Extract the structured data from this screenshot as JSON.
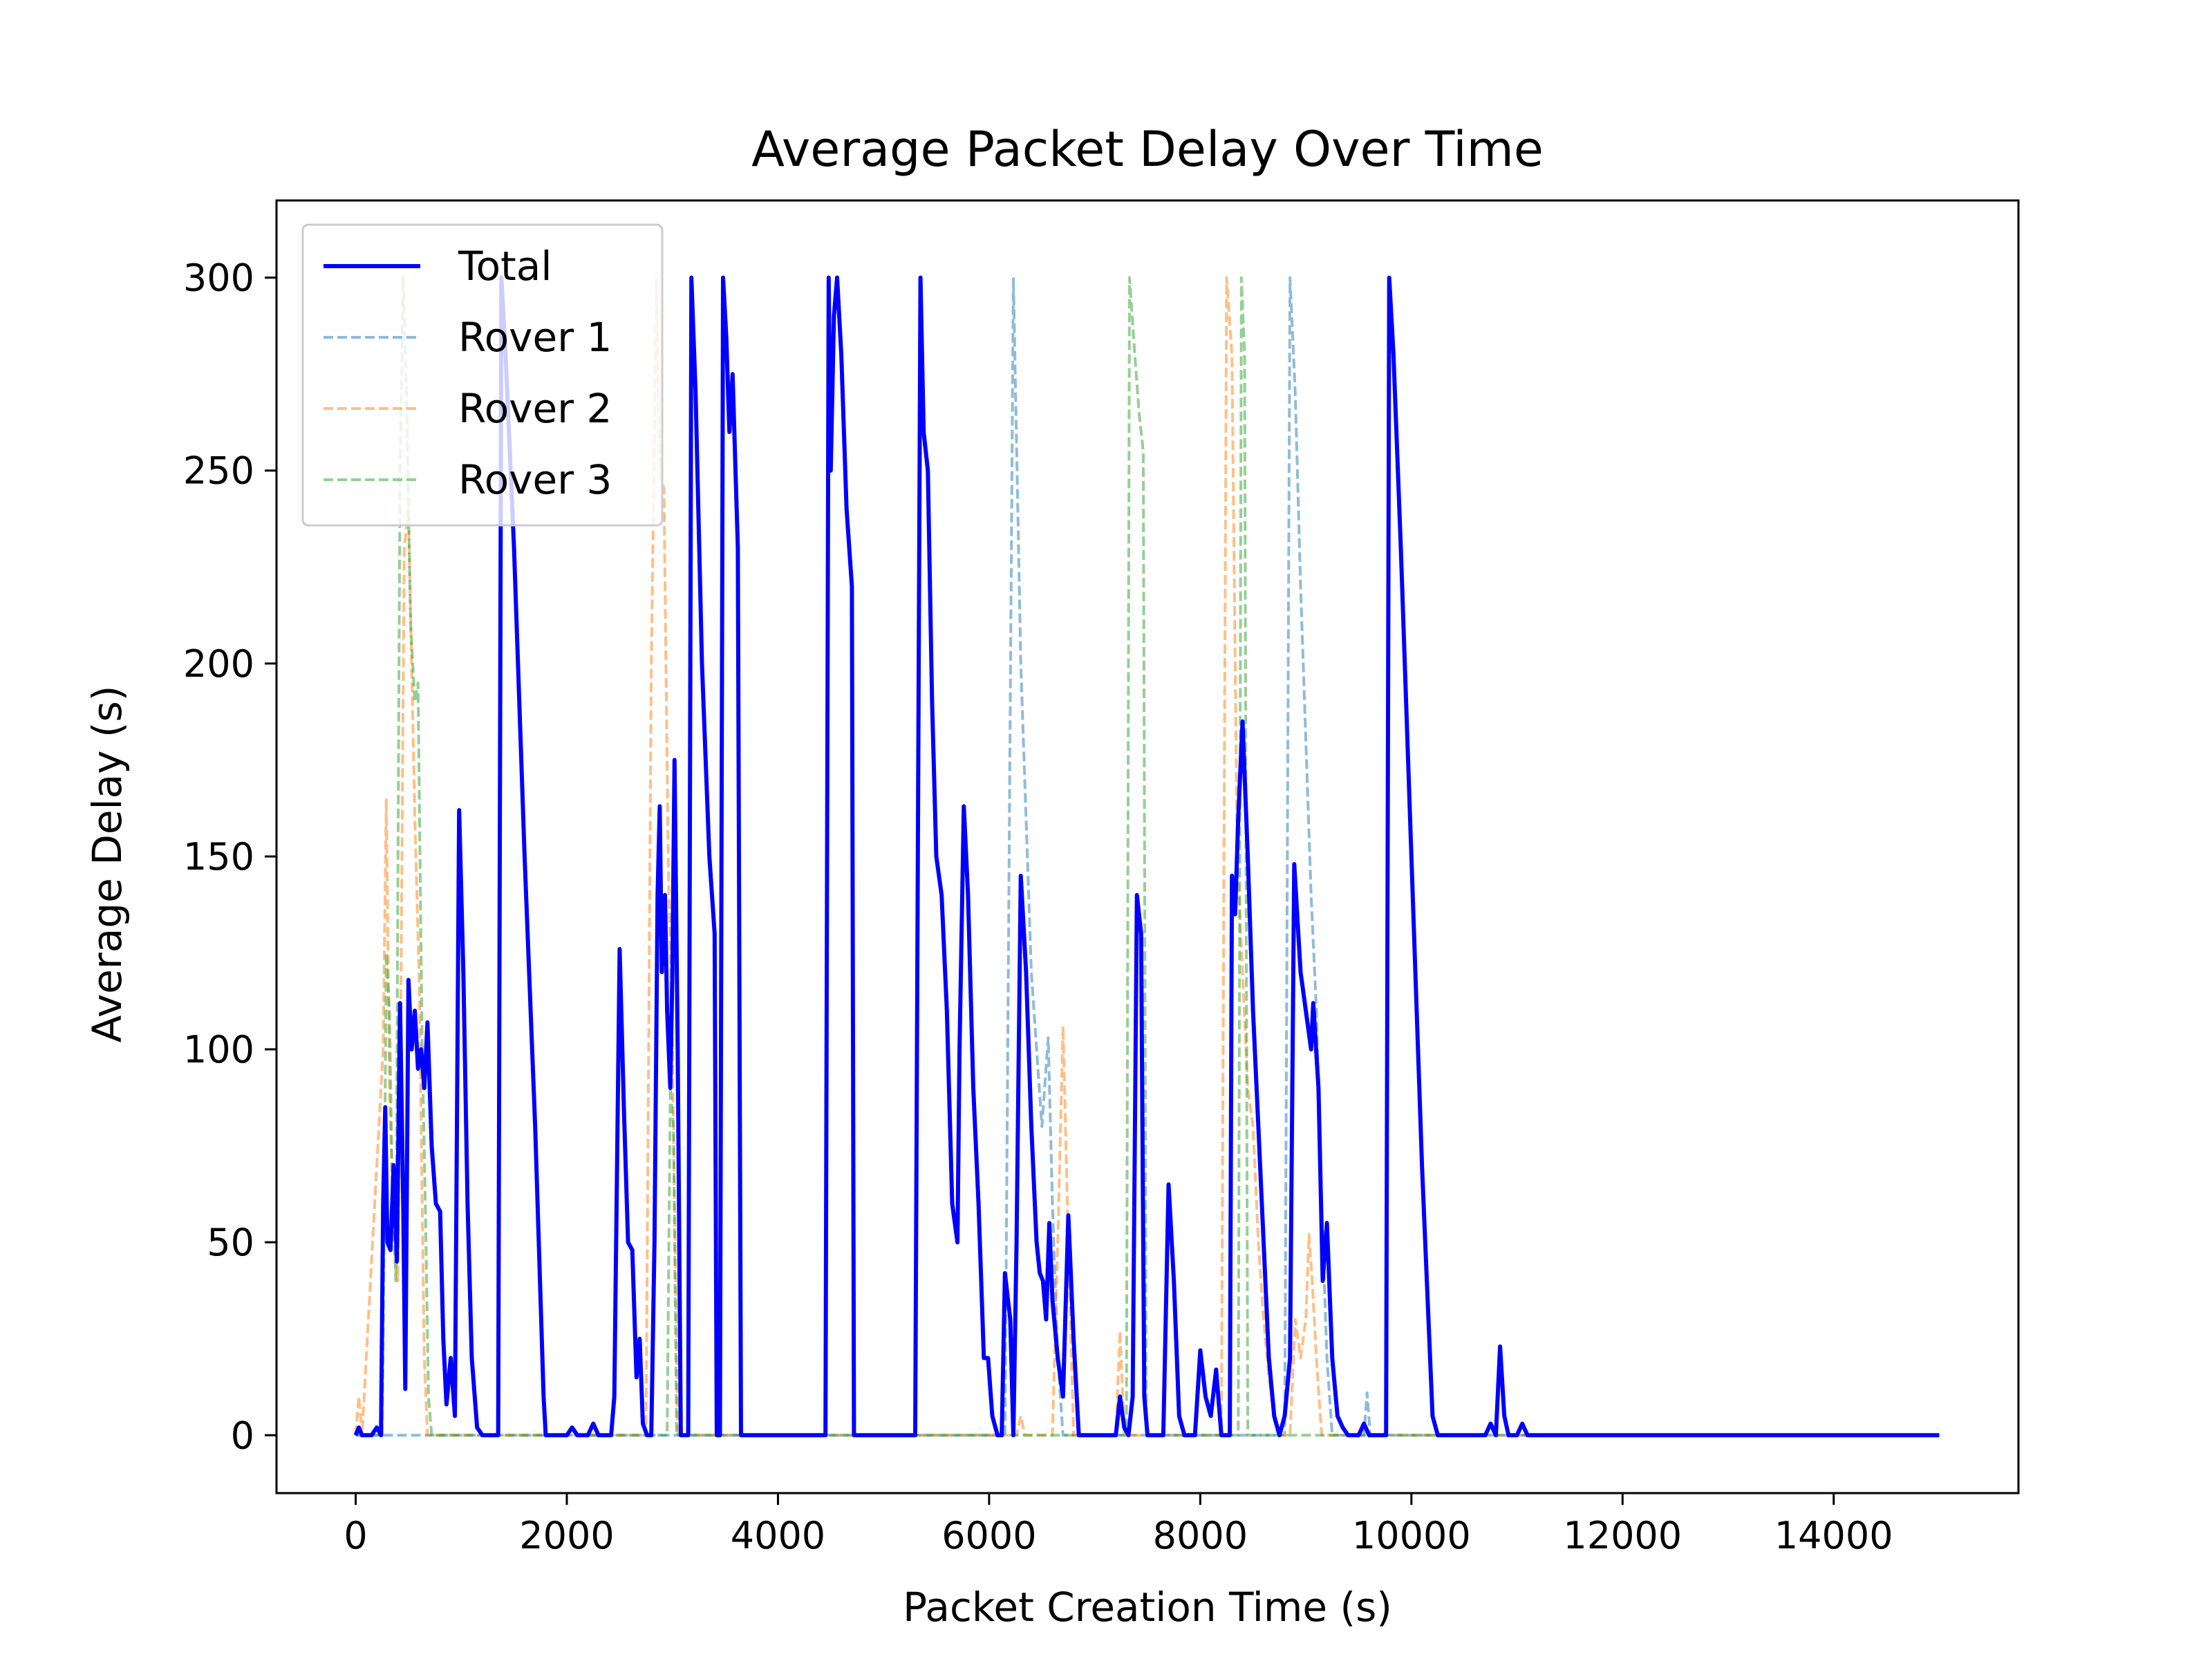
{
  "chart_data": {
    "type": "line",
    "title": "Average Packet Delay Over Time",
    "xlabel": "Packet Creation Time (s)",
    "ylabel": "Average Delay (s)",
    "xlim": [
      -750,
      15750
    ],
    "ylim": [
      -15,
      320
    ],
    "xticks": [
      0,
      2000,
      4000,
      6000,
      8000,
      10000,
      12000,
      14000
    ],
    "yticks": [
      0,
      50,
      100,
      150,
      200,
      250,
      300
    ],
    "grid": false,
    "legend_position": "top-left",
    "series": [
      {
        "name": "Total",
        "color": "#0000ff",
        "style": "solid",
        "points": [
          [
            0,
            0
          ],
          [
            30,
            2
          ],
          [
            60,
            0
          ],
          [
            150,
            0
          ],
          [
            200,
            2
          ],
          [
            240,
            0
          ],
          [
            260,
            60
          ],
          [
            280,
            85
          ],
          [
            300,
            50
          ],
          [
            330,
            48
          ],
          [
            360,
            70
          ],
          [
            390,
            45
          ],
          [
            420,
            112
          ],
          [
            450,
            60
          ],
          [
            470,
            12
          ],
          [
            500,
            118
          ],
          [
            530,
            100
          ],
          [
            560,
            110
          ],
          [
            590,
            95
          ],
          [
            620,
            100
          ],
          [
            650,
            90
          ],
          [
            680,
            107
          ],
          [
            720,
            75
          ],
          [
            760,
            60
          ],
          [
            800,
            58
          ],
          [
            830,
            25
          ],
          [
            860,
            8
          ],
          [
            900,
            20
          ],
          [
            940,
            5
          ],
          [
            980,
            162
          ],
          [
            1020,
            120
          ],
          [
            1060,
            60
          ],
          [
            1100,
            20
          ],
          [
            1150,
            2
          ],
          [
            1200,
            0
          ],
          [
            1350,
            0
          ],
          [
            1380,
            300
          ],
          [
            1420,
            280
          ],
          [
            1500,
            230
          ],
          [
            1600,
            150
          ],
          [
            1700,
            80
          ],
          [
            1780,
            10
          ],
          [
            1800,
            0
          ],
          [
            2000,
            0
          ],
          [
            2050,
            2
          ],
          [
            2100,
            0
          ],
          [
            2200,
            0
          ],
          [
            2250,
            3
          ],
          [
            2300,
            0
          ],
          [
            2420,
            0
          ],
          [
            2450,
            10
          ],
          [
            2500,
            126
          ],
          [
            2540,
            85
          ],
          [
            2580,
            50
          ],
          [
            2620,
            48
          ],
          [
            2660,
            15
          ],
          [
            2690,
            25
          ],
          [
            2720,
            3
          ],
          [
            2760,
            0
          ],
          [
            2800,
            0
          ],
          [
            2830,
            50
          ],
          [
            2860,
            140
          ],
          [
            2880,
            163
          ],
          [
            2900,
            120
          ],
          [
            2930,
            140
          ],
          [
            2950,
            110
          ],
          [
            2980,
            90
          ],
          [
            3000,
            120
          ],
          [
            3020,
            175
          ],
          [
            3050,
            100
          ],
          [
            3080,
            0
          ],
          [
            3150,
            0
          ],
          [
            3180,
            300
          ],
          [
            3220,
            270
          ],
          [
            3280,
            200
          ],
          [
            3350,
            150
          ],
          [
            3400,
            130
          ],
          [
            3420,
            0
          ],
          [
            3450,
            0
          ],
          [
            3480,
            300
          ],
          [
            3510,
            285
          ],
          [
            3540,
            260
          ],
          [
            3570,
            275
          ],
          [
            3620,
            230
          ],
          [
            3650,
            0
          ],
          [
            4450,
            0
          ],
          [
            4480,
            300
          ],
          [
            4500,
            250
          ],
          [
            4530,
            290
          ],
          [
            4560,
            300
          ],
          [
            4600,
            280
          ],
          [
            4650,
            240
          ],
          [
            4700,
            220
          ],
          [
            4720,
            0
          ],
          [
            5300,
            0
          ],
          [
            5350,
            300
          ],
          [
            5380,
            260
          ],
          [
            5420,
            250
          ],
          [
            5460,
            190
          ],
          [
            5500,
            150
          ],
          [
            5550,
            140
          ],
          [
            5600,
            110
          ],
          [
            5650,
            60
          ],
          [
            5700,
            50
          ],
          [
            5720,
            100
          ],
          [
            5760,
            163
          ],
          [
            5800,
            140
          ],
          [
            5850,
            90
          ],
          [
            5900,
            60
          ],
          [
            5950,
            20
          ],
          [
            5990,
            20
          ],
          [
            6030,
            5
          ],
          [
            6080,
            0
          ],
          [
            6120,
            0
          ],
          [
            6150,
            42
          ],
          [
            6200,
            30
          ],
          [
            6230,
            0
          ],
          [
            6260,
            50
          ],
          [
            6300,
            145
          ],
          [
            6350,
            120
          ],
          [
            6400,
            80
          ],
          [
            6450,
            50
          ],
          [
            6480,
            42
          ],
          [
            6510,
            40
          ],
          [
            6540,
            30
          ],
          [
            6570,
            55
          ],
          [
            6600,
            35
          ],
          [
            6650,
            20
          ],
          [
            6700,
            10
          ],
          [
            6750,
            57
          ],
          [
            6800,
            25
          ],
          [
            6850,
            0
          ],
          [
            7200,
            0
          ],
          [
            7240,
            10
          ],
          [
            7280,
            2
          ],
          [
            7320,
            0
          ],
          [
            7360,
            10
          ],
          [
            7400,
            140
          ],
          [
            7440,
            130
          ],
          [
            7470,
            10
          ],
          [
            7500,
            0
          ],
          [
            7650,
            0
          ],
          [
            7700,
            65
          ],
          [
            7750,
            40
          ],
          [
            7800,
            5
          ],
          [
            7850,
            0
          ],
          [
            7950,
            0
          ],
          [
            8000,
            22
          ],
          [
            8050,
            10
          ],
          [
            8100,
            5
          ],
          [
            8150,
            17
          ],
          [
            8200,
            0
          ],
          [
            8280,
            0
          ],
          [
            8300,
            145
          ],
          [
            8330,
            135
          ],
          [
            8360,
            160
          ],
          [
            8400,
            185
          ],
          [
            8450,
            150
          ],
          [
            8500,
            110
          ],
          [
            8550,
            80
          ],
          [
            8600,
            50
          ],
          [
            8650,
            20
          ],
          [
            8700,
            5
          ],
          [
            8750,
            0
          ],
          [
            8800,
            5
          ],
          [
            8850,
            20
          ],
          [
            8890,
            148
          ],
          [
            8950,
            120
          ],
          [
            9000,
            110
          ],
          [
            9050,
            100
          ],
          [
            9070,
            112
          ],
          [
            9120,
            90
          ],
          [
            9160,
            40
          ],
          [
            9200,
            55
          ],
          [
            9250,
            20
          ],
          [
            9300,
            5
          ],
          [
            9350,
            2
          ],
          [
            9400,
            0
          ],
          [
            9500,
            0
          ],
          [
            9550,
            3
          ],
          [
            9600,
            0
          ],
          [
            9760,
            0
          ],
          [
            9790,
            300
          ],
          [
            9830,
            280
          ],
          [
            9900,
            230
          ],
          [
            10000,
            150
          ],
          [
            10100,
            70
          ],
          [
            10200,
            5
          ],
          [
            10250,
            0
          ],
          [
            10700,
            0
          ],
          [
            10750,
            3
          ],
          [
            10800,
            0
          ],
          [
            10840,
            23
          ],
          [
            10880,
            5
          ],
          [
            10920,
            0
          ],
          [
            11000,
            0
          ],
          [
            11050,
            3
          ],
          [
            11100,
            0
          ],
          [
            15000,
            0
          ]
        ]
      },
      {
        "name": "Rover 1",
        "color": "#1f77b4",
        "style": "dashed",
        "points": [
          [
            0,
            0
          ],
          [
            6150,
            0
          ],
          [
            6230,
            300
          ],
          [
            6300,
            200
          ],
          [
            6400,
            120
          ],
          [
            6500,
            80
          ],
          [
            6560,
            103
          ],
          [
            6600,
            60
          ],
          [
            6650,
            20
          ],
          [
            6700,
            0
          ],
          [
            8800,
            0
          ],
          [
            8850,
            300
          ],
          [
            8900,
            270
          ],
          [
            8950,
            220
          ],
          [
            9000,
            180
          ],
          [
            9050,
            140
          ],
          [
            9100,
            110
          ],
          [
            9150,
            60
          ],
          [
            9200,
            20
          ],
          [
            9250,
            0
          ],
          [
            9550,
            0
          ],
          [
            9580,
            11
          ],
          [
            9610,
            0
          ],
          [
            15000,
            0
          ]
        ]
      },
      {
        "name": "Rover 2",
        "color": "#ff7f0e",
        "style": "dashed",
        "points": [
          [
            0,
            0
          ],
          [
            30,
            10
          ],
          [
            60,
            0
          ],
          [
            260,
            100
          ],
          [
            290,
            165
          ],
          [
            320,
            90
          ],
          [
            350,
            60
          ],
          [
            400,
            40
          ],
          [
            430,
            120
          ],
          [
            460,
            230
          ],
          [
            500,
            240
          ],
          [
            530,
            200
          ],
          [
            560,
            160
          ],
          [
            600,
            120
          ],
          [
            650,
            20
          ],
          [
            680,
            0
          ],
          [
            2750,
            0
          ],
          [
            2800,
            200
          ],
          [
            2850,
            300
          ],
          [
            2880,
            250
          ],
          [
            2920,
            245
          ],
          [
            2960,
            150
          ],
          [
            3000,
            100
          ],
          [
            3050,
            0
          ],
          [
            6260,
            0
          ],
          [
            6300,
            5
          ],
          [
            6340,
            0
          ],
          [
            6600,
            0
          ],
          [
            6650,
            50
          ],
          [
            6700,
            106
          ],
          [
            6750,
            50
          ],
          [
            6800,
            0
          ],
          [
            7200,
            0
          ],
          [
            7240,
            27
          ],
          [
            7280,
            0
          ],
          [
            8200,
            0
          ],
          [
            8250,
            300
          ],
          [
            8300,
            280
          ],
          [
            8350,
            150
          ],
          [
            8400,
            120
          ],
          [
            8450,
            90
          ],
          [
            8500,
            80
          ],
          [
            8550,
            50
          ],
          [
            8600,
            30
          ],
          [
            8650,
            15
          ],
          [
            8700,
            5
          ],
          [
            8750,
            0
          ],
          [
            8850,
            0
          ],
          [
            8900,
            30
          ],
          [
            8950,
            20
          ],
          [
            9000,
            30
          ],
          [
            9030,
            52
          ],
          [
            9060,
            40
          ],
          [
            9100,
            20
          ],
          [
            9150,
            0
          ],
          [
            15000,
            0
          ]
        ]
      },
      {
        "name": "Rover 3",
        "color": "#2ca02c",
        "style": "dashed",
        "points": [
          [
            0,
            0
          ],
          [
            250,
            0
          ],
          [
            260,
            20
          ],
          [
            290,
            125
          ],
          [
            320,
            110
          ],
          [
            350,
            60
          ],
          [
            380,
            40
          ],
          [
            420,
            250
          ],
          [
            450,
            300
          ],
          [
            480,
            270
          ],
          [
            520,
            210
          ],
          [
            560,
            190
          ],
          [
            590,
            195
          ],
          [
            630,
            100
          ],
          [
            660,
            60
          ],
          [
            690,
            10
          ],
          [
            720,
            0
          ],
          [
            2950,
            0
          ],
          [
            2980,
            90
          ],
          [
            3010,
            80
          ],
          [
            3040,
            0
          ],
          [
            7300,
            0
          ],
          [
            7330,
            300
          ],
          [
            7380,
            280
          ],
          [
            7420,
            265
          ],
          [
            7460,
            255
          ],
          [
            7490,
            0
          ],
          [
            8360,
            0
          ],
          [
            8390,
            300
          ],
          [
            8420,
            280
          ],
          [
            8450,
            0
          ],
          [
            15000,
            0
          ]
        ]
      }
    ]
  }
}
